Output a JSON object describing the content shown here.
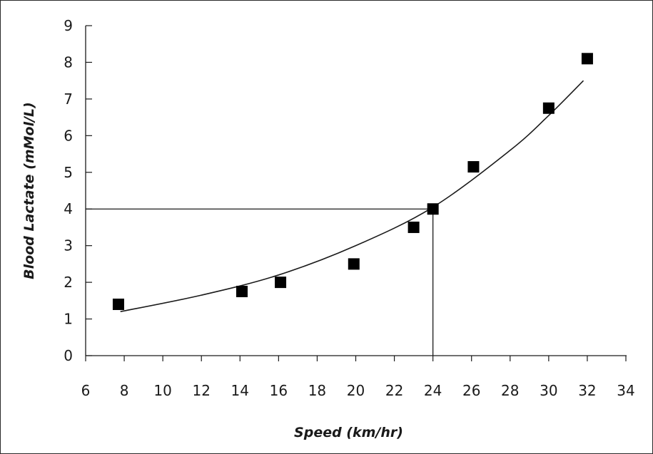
{
  "chart_data": {
    "type": "scatter",
    "xlabel": "Speed (km/hr)",
    "ylabel": "Blood Lactate (mMol/L)",
    "xlim": [
      6,
      34
    ],
    "ylim": [
      0,
      9
    ],
    "x_ticks": [
      "6",
      "8",
      "10",
      "12",
      "14",
      "16",
      "18",
      "20",
      "22",
      "24",
      "26",
      "28",
      "30",
      "32",
      "34"
    ],
    "y_ticks": [
      "0",
      "1",
      "2",
      "3",
      "4",
      "5",
      "6",
      "7",
      "8",
      "9"
    ],
    "grid": false,
    "series": [
      {
        "points": [
          {
            "x": 7.7,
            "y": 1.4
          },
          {
            "x": 14.1,
            "y": 1.75
          },
          {
            "x": 16.1,
            "y": 2.0
          },
          {
            "x": 19.9,
            "y": 2.5
          },
          {
            "x": 23.0,
            "y": 3.5
          },
          {
            "x": 24.0,
            "y": 4.0
          },
          {
            "x": 26.1,
            "y": 5.15
          },
          {
            "x": 30.0,
            "y": 6.75
          },
          {
            "x": 32.0,
            "y": 8.1
          }
        ]
      }
    ],
    "trend_curve": {
      "type": "exponential",
      "x_range": [
        7.8,
        31.8
      ],
      "points": [
        {
          "x": 7.8,
          "y": 1.2
        },
        {
          "x": 12,
          "y": 1.65
        },
        {
          "x": 16,
          "y": 2.2
        },
        {
          "x": 20,
          "y": 3.0
        },
        {
          "x": 24,
          "y": 4.05
        },
        {
          "x": 28,
          "y": 5.6
        },
        {
          "x": 30,
          "y": 6.55
        },
        {
          "x": 31.8,
          "y": 7.5
        }
      ]
    },
    "reference_lines": [
      {
        "orientation": "horizontal",
        "y": 4,
        "x_from": 6,
        "x_to": 24
      },
      {
        "orientation": "vertical",
        "x": 24,
        "y_from": 0,
        "y_to": 4
      }
    ],
    "colors": {
      "marker": "#000000",
      "line": "#1a1a1a",
      "axis": "#1a1a1a"
    }
  }
}
